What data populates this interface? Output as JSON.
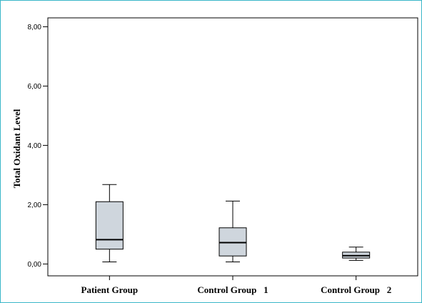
{
  "chart_data": {
    "type": "boxplot",
    "title": "",
    "xlabel": "",
    "ylabel": "Total Oxidant Level",
    "ylim": [
      -0.4,
      8.3
    ],
    "yticks": [
      0,
      2,
      4,
      6,
      8
    ],
    "ytick_labels": [
      "0,00",
      "2,00",
      "4,00",
      "6,00",
      "8,00"
    ],
    "grid": false,
    "categories": [
      "Patient Group",
      "Control Group   1",
      "Control Group   2"
    ],
    "boxes": [
      {
        "category": "Patient Group",
        "min": 0.07,
        "q1": 0.5,
        "median": 0.82,
        "q3": 2.1,
        "max": 2.68
      },
      {
        "category": "Control Group   1",
        "min": 0.07,
        "q1": 0.27,
        "median": 0.72,
        "q3": 1.22,
        "max": 2.12
      },
      {
        "category": "Control Group   2",
        "min": 0.12,
        "q1": 0.2,
        "median": 0.28,
        "q3": 0.4,
        "max": 0.57
      }
    ],
    "colors": {
      "box_fill": "#cfd6dd",
      "line": "#000000",
      "frame": "#3ab7c8"
    }
  }
}
